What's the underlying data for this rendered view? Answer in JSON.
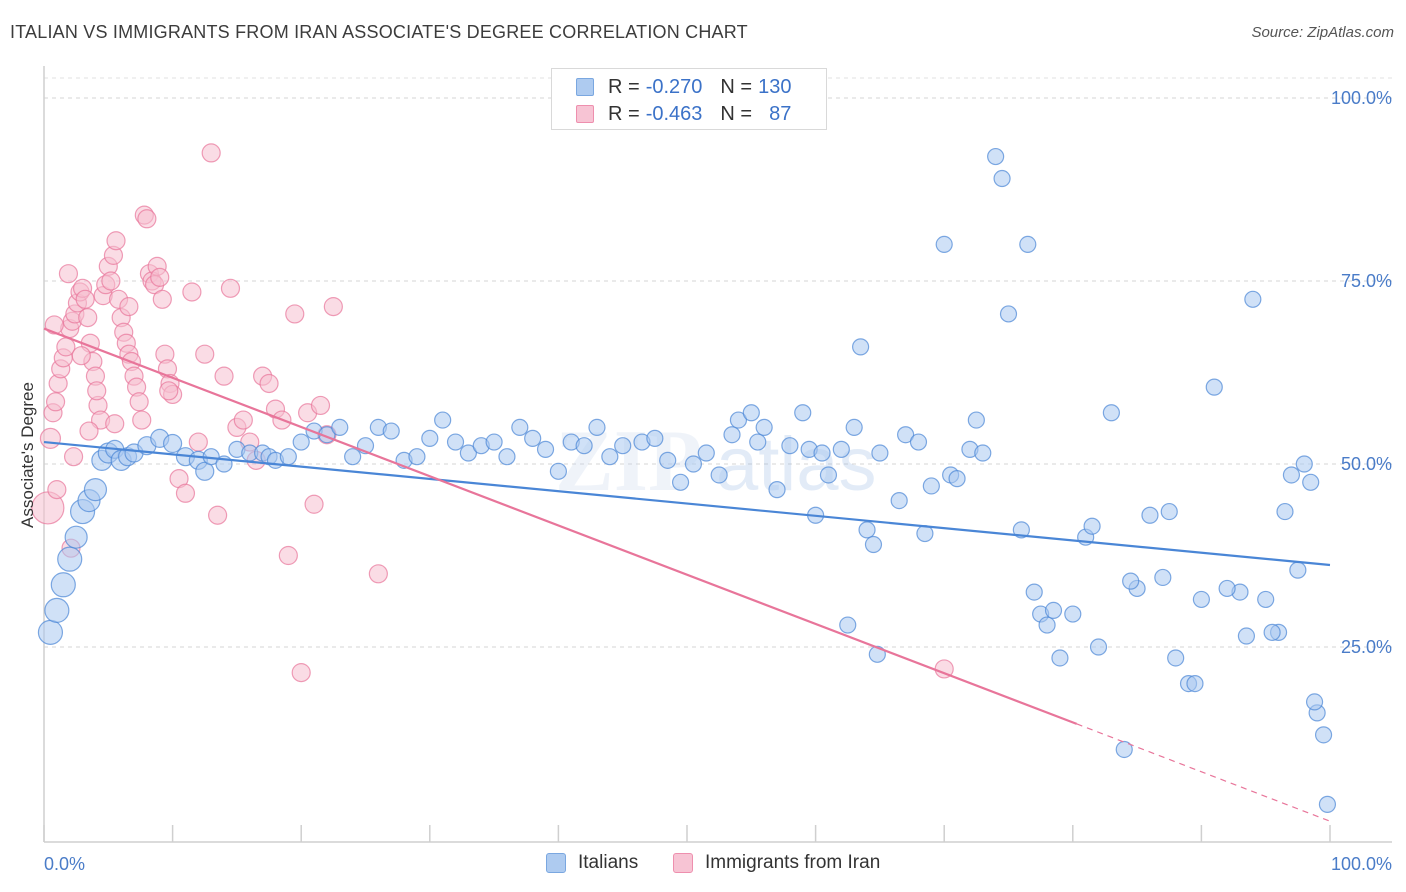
{
  "title": "ITALIAN VS IMMIGRANTS FROM IRAN ASSOCIATE'S DEGREE CORRELATION CHART",
  "source": "Source: ZipAtlas.com",
  "watermark": {
    "zip": "ZIP",
    "atlas": "atlas"
  },
  "legend": {
    "rows": [
      {
        "r_label": "R =",
        "r_value": "-0.270",
        "n_label": "N =",
        "n_value": "130",
        "color": "#7aa7e0",
        "fill": "#aecbf0"
      },
      {
        "r_label": "R =",
        "r_value": "-0.463",
        "n_label": "N =",
        "n_value": "87",
        "color": "#ee8fae",
        "fill": "#f7c4d4"
      }
    ]
  },
  "bottom_legend": {
    "italians": "Italians",
    "iran": "Immigrants from Iran"
  },
  "chart_data": {
    "type": "scatter",
    "xlabel": "",
    "ylabel": "Associate's Degree",
    "xlim": [
      0,
      100
    ],
    "ylim": [
      0,
      100
    ],
    "x_tick_labels": [
      "0.0%",
      "100.0%"
    ],
    "y_ticks": [
      25,
      50,
      75,
      100
    ],
    "y_tick_labels": [
      "25.0%",
      "50.0%",
      "75.0%",
      "100.0%"
    ],
    "grid": true,
    "legend_position": "top-center",
    "series": [
      {
        "name": "Italians",
        "color": "#4a86d6",
        "fill": "#a9c8f0",
        "trend": {
          "x0": 0,
          "y0": 53.0,
          "x1": 100,
          "y1": 36.2
        },
        "points": [
          [
            0.5,
            27.0,
            12
          ],
          [
            1.0,
            30.0,
            12
          ],
          [
            1.5,
            33.5,
            12
          ],
          [
            2.0,
            37.0,
            12
          ],
          [
            2.5,
            40.0,
            11
          ],
          [
            3.0,
            43.5,
            12
          ],
          [
            3.5,
            45.0,
            11
          ],
          [
            4.0,
            46.5,
            11
          ],
          [
            4.5,
            50.5,
            10
          ],
          [
            5.0,
            51.5,
            10
          ],
          [
            5.5,
            52.0,
            9
          ],
          [
            6.0,
            50.5,
            10
          ],
          [
            6.5,
            51.0,
            9
          ],
          [
            7.0,
            51.5,
            9
          ],
          [
            8.0,
            52.5,
            9
          ],
          [
            9.0,
            53.5,
            9
          ],
          [
            10.0,
            52.8,
            9
          ],
          [
            11.0,
            51.0,
            9
          ],
          [
            12.0,
            50.5,
            9
          ],
          [
            12.5,
            49.0,
            9
          ],
          [
            13.0,
            51.0,
            8
          ],
          [
            14.0,
            50.0,
            8
          ],
          [
            15.0,
            52.0,
            8
          ],
          [
            16.0,
            51.5,
            8
          ],
          [
            17.0,
            51.5,
            8
          ],
          [
            17.5,
            51.0,
            8
          ],
          [
            18.0,
            50.5,
            8
          ],
          [
            19.0,
            51.0,
            8
          ],
          [
            20.0,
            53.0,
            8
          ],
          [
            21.0,
            54.5,
            8
          ],
          [
            22.0,
            54.0,
            8
          ],
          [
            23.0,
            55.0,
            8
          ],
          [
            24.0,
            51.0,
            8
          ],
          [
            25.0,
            52.5,
            8
          ],
          [
            26.0,
            55.0,
            8
          ],
          [
            27.0,
            54.5,
            8
          ],
          [
            28.0,
            50.5,
            8
          ],
          [
            29.0,
            51.0,
            8
          ],
          [
            30.0,
            53.5,
            8
          ],
          [
            31.0,
            56.0,
            8
          ],
          [
            32.0,
            53.0,
            8
          ],
          [
            33.0,
            51.5,
            8
          ],
          [
            34.0,
            52.5,
            8
          ],
          [
            35.0,
            53.0,
            8
          ],
          [
            36.0,
            51.0,
            8
          ],
          [
            37.0,
            55.0,
            8
          ],
          [
            38.0,
            53.5,
            8
          ],
          [
            39.0,
            52.0,
            8
          ],
          [
            40.0,
            49.0,
            8
          ],
          [
            41.0,
            53.0,
            8
          ],
          [
            42.0,
            52.5,
            8
          ],
          [
            43.0,
            55.0,
            8
          ],
          [
            44.0,
            51.0,
            8
          ],
          [
            45.0,
            52.5,
            8
          ],
          [
            46.5,
            53.0,
            8
          ],
          [
            47.5,
            53.5,
            8
          ],
          [
            48.5,
            50.5,
            8
          ],
          [
            49.5,
            47.5,
            8
          ],
          [
            50.5,
            50.0,
            8
          ],
          [
            51.5,
            51.5,
            8
          ],
          [
            52.5,
            48.5,
            8
          ],
          [
            53.5,
            54.0,
            8
          ],
          [
            54.0,
            56.0,
            8
          ],
          [
            55.0,
            57.0,
            8
          ],
          [
            55.5,
            53.0,
            8
          ],
          [
            56.0,
            55.0,
            8
          ],
          [
            57.0,
            46.5,
            8
          ],
          [
            58.0,
            52.5,
            8
          ],
          [
            59.0,
            57.0,
            8
          ],
          [
            59.5,
            52.0,
            8
          ],
          [
            60.5,
            51.5,
            8
          ],
          [
            62.0,
            52.0,
            8
          ],
          [
            63.0,
            55.0,
            8
          ],
          [
            64.0,
            41.0,
            8
          ],
          [
            64.5,
            39.0,
            8
          ],
          [
            65.0,
            51.5,
            8
          ],
          [
            67.0,
            54.0,
            8
          ],
          [
            68.0,
            53.0,
            8
          ],
          [
            69.0,
            47.0,
            8
          ],
          [
            70.5,
            48.5,
            8
          ],
          [
            71.0,
            48.0,
            8
          ],
          [
            72.0,
            52.0,
            8
          ],
          [
            72.5,
            56.0,
            8
          ],
          [
            73.0,
            51.5,
            8
          ],
          [
            75.0,
            70.5,
            8
          ],
          [
            76.0,
            41.0,
            8
          ],
          [
            77.0,
            32.5,
            8
          ],
          [
            77.5,
            29.5,
            8
          ],
          [
            78.0,
            28.0,
            8
          ],
          [
            79.0,
            23.5,
            8
          ],
          [
            80.0,
            29.5,
            8
          ],
          [
            81.0,
            40.0,
            8
          ],
          [
            82.0,
            25.0,
            8
          ],
          [
            83.0,
            57.0,
            8
          ],
          [
            84.0,
            11.0,
            8
          ],
          [
            85.0,
            33.0,
            8
          ],
          [
            86.0,
            43.0,
            8
          ],
          [
            87.0,
            34.5,
            8
          ],
          [
            88.0,
            23.5,
            8
          ],
          [
            89.0,
            20.0,
            8
          ],
          [
            90.0,
            31.5,
            8
          ],
          [
            91.0,
            60.5,
            8
          ],
          [
            93.0,
            32.5,
            8
          ],
          [
            94.0,
            72.5,
            8
          ],
          [
            95.0,
            31.5,
            8
          ],
          [
            96.0,
            27.0,
            8
          ],
          [
            96.5,
            43.5,
            8
          ],
          [
            97.5,
            35.5,
            8
          ],
          [
            98.0,
            50.0,
            8
          ],
          [
            98.5,
            47.5,
            8
          ],
          [
            99.0,
            16.0,
            8
          ],
          [
            99.5,
            13.0,
            8
          ],
          [
            60.0,
            43.0,
            8
          ],
          [
            61.0,
            48.5,
            8
          ],
          [
            63.5,
            66.0,
            8
          ],
          [
            62.5,
            28.0,
            8
          ],
          [
            64.8,
            24.0,
            8
          ],
          [
            66.5,
            45.0,
            8
          ],
          [
            68.5,
            40.5,
            8
          ],
          [
            70.0,
            80.0,
            8
          ],
          [
            74.0,
            92.0,
            8
          ],
          [
            74.5,
            89.0,
            8
          ],
          [
            76.5,
            80.0,
            8
          ],
          [
            78.5,
            30.0,
            8
          ],
          [
            81.5,
            41.5,
            8
          ],
          [
            84.5,
            34.0,
            8
          ],
          [
            87.5,
            43.5,
            8
          ],
          [
            89.5,
            20.0,
            8
          ],
          [
            92.0,
            33.0,
            8
          ],
          [
            95.5,
            27.0,
            8
          ],
          [
            97.0,
            48.5,
            8
          ],
          [
            98.8,
            17.5,
            8
          ],
          [
            99.8,
            3.5,
            8
          ],
          [
            93.5,
            26.5,
            8
          ]
        ]
      },
      {
        "name": "Immigrants from Iran",
        "color": "#e8759a",
        "fill": "#f5bfd0",
        "trend": {
          "x0": 0,
          "y0": 68.5,
          "x1": 80.3,
          "y1": 14.5
        },
        "trend_dashed": {
          "x0": 80.3,
          "y0": 14.5,
          "x1": 100,
          "y1": 1.2
        },
        "points": [
          [
            0.3,
            44.0,
            16
          ],
          [
            0.5,
            53.5,
            10
          ],
          [
            0.7,
            57.0,
            9
          ],
          [
            0.9,
            58.5,
            9
          ],
          [
            1.1,
            61.0,
            9
          ],
          [
            1.3,
            63.0,
            9
          ],
          [
            1.5,
            64.5,
            9
          ],
          [
            1.7,
            66.0,
            9
          ],
          [
            2.0,
            68.5,
            9
          ],
          [
            2.2,
            69.5,
            9
          ],
          [
            2.4,
            70.5,
            9
          ],
          [
            2.6,
            72.0,
            9
          ],
          [
            2.8,
            73.5,
            9
          ],
          [
            3.0,
            74.0,
            9
          ],
          [
            3.2,
            72.5,
            9
          ],
          [
            3.4,
            70.0,
            9
          ],
          [
            3.6,
            66.5,
            9
          ],
          [
            3.8,
            64.0,
            9
          ],
          [
            4.0,
            62.0,
            9
          ],
          [
            4.2,
            58.0,
            9
          ],
          [
            4.4,
            56.0,
            9
          ],
          [
            4.6,
            73.0,
            9
          ],
          [
            4.8,
            74.5,
            9
          ],
          [
            5.0,
            77.0,
            9
          ],
          [
            5.2,
            75.0,
            9
          ],
          [
            5.4,
            78.5,
            9
          ],
          [
            5.6,
            80.5,
            9
          ],
          [
            5.8,
            72.5,
            9
          ],
          [
            6.0,
            70.0,
            9
          ],
          [
            6.2,
            68.0,
            9
          ],
          [
            6.4,
            66.5,
            9
          ],
          [
            6.6,
            65.0,
            9
          ],
          [
            6.8,
            64.0,
            9
          ],
          [
            7.0,
            62.0,
            9
          ],
          [
            7.2,
            60.5,
            9
          ],
          [
            7.4,
            58.5,
            9
          ],
          [
            7.6,
            56.0,
            9
          ],
          [
            7.8,
            84.0,
            9
          ],
          [
            8.0,
            83.5,
            9
          ],
          [
            8.2,
            76.0,
            9
          ],
          [
            8.4,
            75.0,
            9
          ],
          [
            8.6,
            74.5,
            9
          ],
          [
            8.8,
            77.0,
            9
          ],
          [
            9.0,
            75.5,
            9
          ],
          [
            9.2,
            72.5,
            9
          ],
          [
            9.4,
            65.0,
            9
          ],
          [
            9.6,
            63.0,
            9
          ],
          [
            9.8,
            61.0,
            9
          ],
          [
            10.0,
            59.5,
            9
          ],
          [
            10.5,
            48.0,
            9
          ],
          [
            11.0,
            46.0,
            9
          ],
          [
            11.5,
            73.5,
            9
          ],
          [
            12.0,
            53.0,
            9
          ],
          [
            12.5,
            65.0,
            9
          ],
          [
            13.0,
            92.5,
            9
          ],
          [
            13.5,
            43.0,
            9
          ],
          [
            14.0,
            62.0,
            9
          ],
          [
            14.5,
            74.0,
            9
          ],
          [
            15.0,
            55.0,
            9
          ],
          [
            15.5,
            56.0,
            9
          ],
          [
            16.0,
            53.0,
            9
          ],
          [
            16.5,
            50.5,
            9
          ],
          [
            17.0,
            62.0,
            9
          ],
          [
            17.5,
            61.0,
            9
          ],
          [
            18.0,
            57.5,
            9
          ],
          [
            18.5,
            56.0,
            9
          ],
          [
            19.0,
            37.5,
            9
          ],
          [
            19.5,
            70.5,
            9
          ],
          [
            20.0,
            21.5,
            9
          ],
          [
            20.5,
            57.0,
            9
          ],
          [
            21.0,
            44.5,
            9
          ],
          [
            21.5,
            58.0,
            9
          ],
          [
            22.0,
            54.0,
            9
          ],
          [
            22.5,
            71.5,
            9
          ],
          [
            26.0,
            35.0,
            9
          ],
          [
            70.0,
            22.0,
            9
          ],
          [
            2.1,
            38.5,
            9
          ],
          [
            1.0,
            46.5,
            9
          ],
          [
            2.3,
            51.0,
            9
          ],
          [
            3.5,
            54.5,
            9
          ],
          [
            4.1,
            60.0,
            9
          ],
          [
            0.8,
            69.0,
            9
          ],
          [
            1.9,
            76.0,
            9
          ],
          [
            2.9,
            64.8,
            9
          ],
          [
            5.5,
            55.5,
            9
          ],
          [
            6.6,
            71.5,
            9
          ],
          [
            9.7,
            60.0,
            9
          ]
        ]
      }
    ]
  }
}
